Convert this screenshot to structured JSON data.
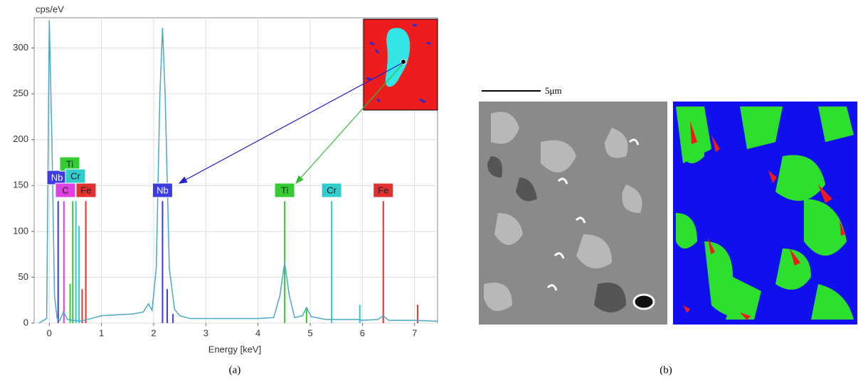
{
  "chart_data": {
    "type": "line",
    "y_label": "cps/eV",
    "x_label": "Energy [keV]",
    "xlim": [
      -0.29,
      7.44
    ],
    "ylim": [
      0,
      333
    ],
    "xticks": [
      0,
      1,
      2,
      3,
      4,
      5,
      6,
      7
    ],
    "yticks": [
      0,
      50,
      100,
      150,
      200,
      250,
      300
    ],
    "grid": true,
    "color": "#4aa8c8",
    "x": [
      -0.2,
      -0.05,
      0.0,
      0.05,
      0.1,
      0.15,
      0.2,
      0.27,
      0.35,
      0.45,
      0.6,
      0.8,
      1.0,
      1.3,
      1.6,
      1.8,
      1.9,
      1.97,
      2.05,
      2.12,
      2.17,
      2.22,
      2.3,
      2.4,
      2.5,
      2.7,
      3.0,
      3.5,
      4.0,
      4.3,
      4.42,
      4.51,
      4.6,
      4.7,
      4.85,
      4.93,
      5.02,
      5.3,
      5.9,
      6.0,
      6.3,
      6.4,
      6.5,
      7.0,
      7.44
    ],
    "values": [
      0,
      5,
      330,
      200,
      30,
      5,
      3,
      12,
      4,
      3,
      2,
      5,
      8,
      9,
      10,
      12,
      21,
      14,
      60,
      250,
      322,
      250,
      60,
      15,
      8,
      5,
      5,
      5,
      5,
      6,
      30,
      66,
      30,
      6,
      8,
      17,
      7,
      4,
      4,
      3,
      4,
      8,
      3,
      3,
      2
    ],
    "element_lines": [
      {
        "name": "Nb",
        "color": "#3c3ce0",
        "x": [
          0.17,
          2.17,
          2.26,
          2.37
        ],
        "values": [
          133,
          133,
          37,
          10
        ]
      },
      {
        "name": "C",
        "color": "#e040e0",
        "x": [
          0.28
        ],
        "values": [
          133
        ]
      },
      {
        "name": "Ti",
        "color": "#33cc33",
        "x": [
          0.4,
          0.45,
          4.51,
          4.93
        ],
        "values": [
          43,
          133,
          133,
          17
        ]
      },
      {
        "name": "Cr",
        "color": "#33cccc",
        "x": [
          0.51,
          0.57,
          5.41,
          5.95
        ],
        "values": [
          133,
          106,
          133,
          20
        ]
      },
      {
        "name": "Fe",
        "color": "#e03030",
        "x": [
          0.63,
          0.7,
          6.4,
          7.06
        ],
        "values": [
          37,
          133,
          133,
          20
        ]
      }
    ]
  },
  "scale_bar": "5μm",
  "captions": [
    "(a)",
    "(b)"
  ]
}
